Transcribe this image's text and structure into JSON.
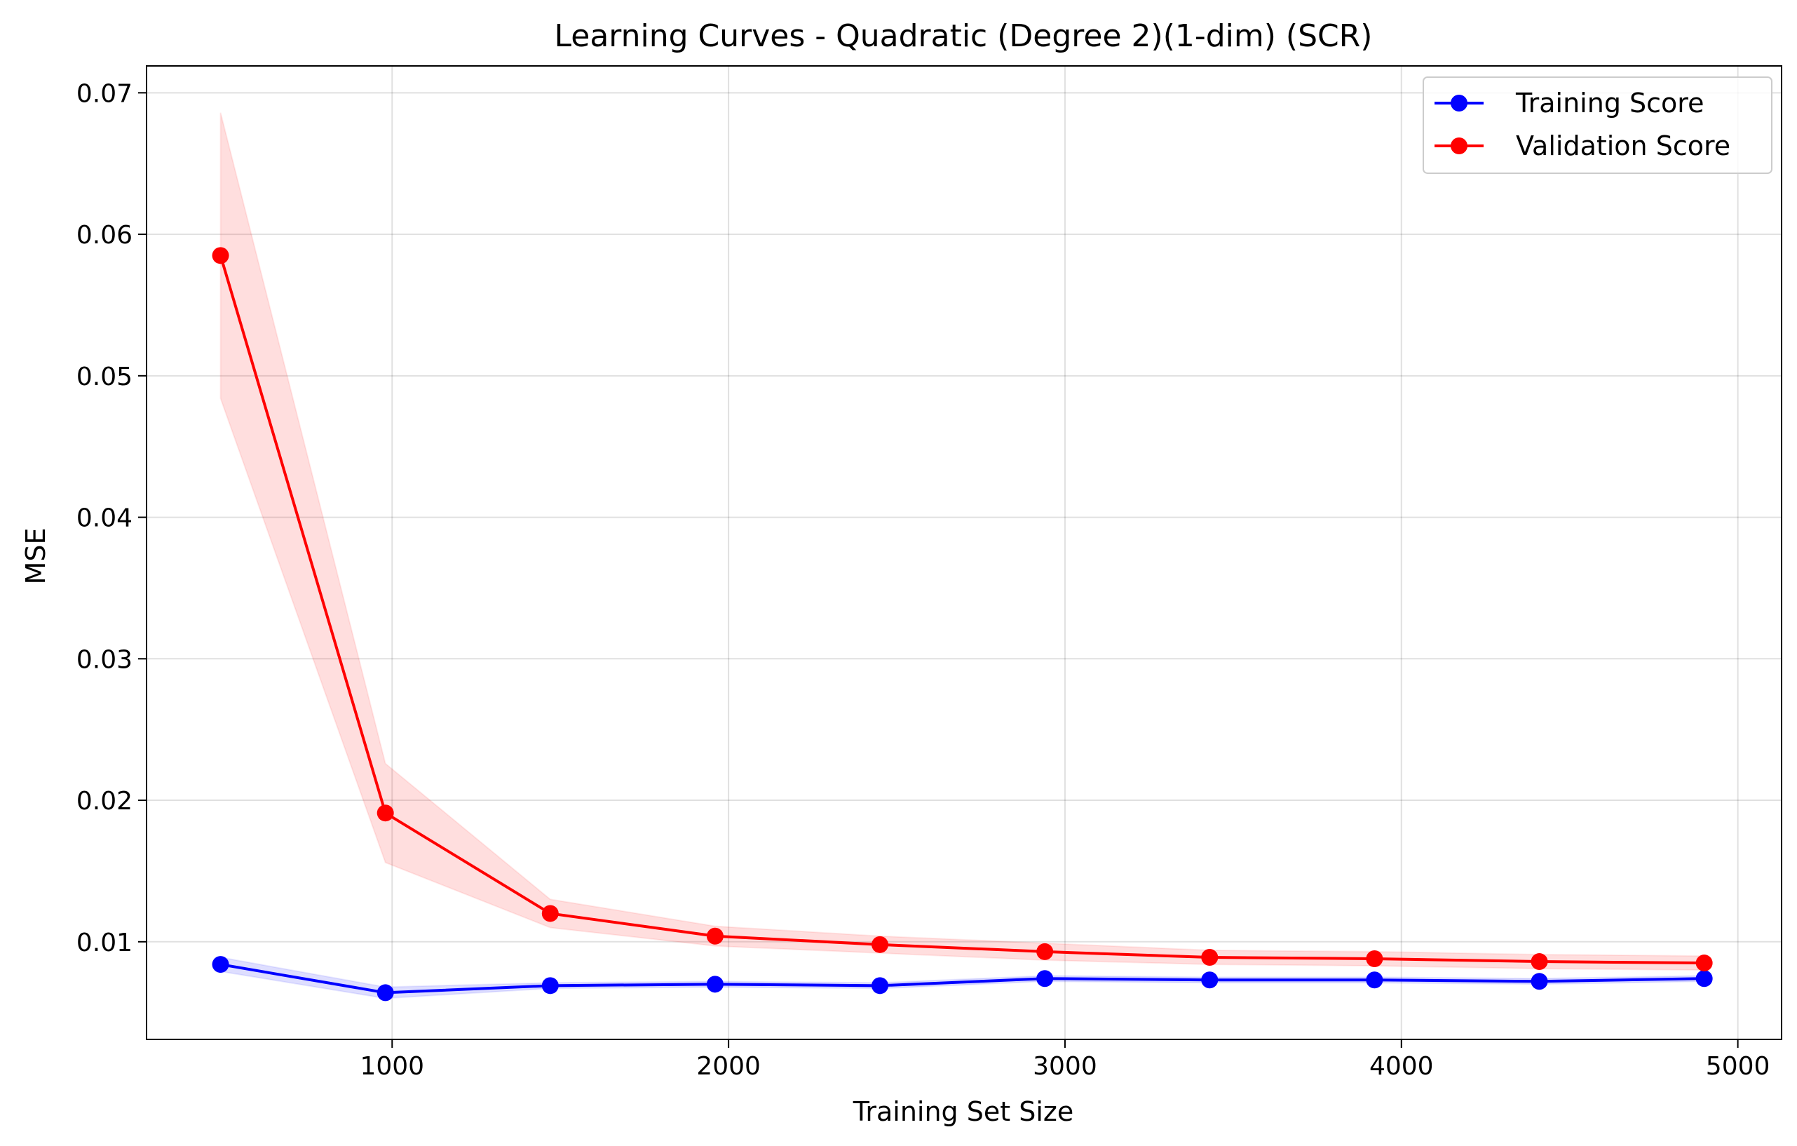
{
  "chart_data": {
    "type": "line",
    "title": "Learning Curves - Quadratic (Degree 2)(1-dim) (SCR)",
    "xlabel": "Training Set Size",
    "ylabel": "MSE",
    "xlim": [
      270,
      5130
    ],
    "ylim": [
      0.0031,
      0.0719
    ],
    "xticks": [
      1000,
      2000,
      3000,
      4000,
      5000
    ],
    "xtick_labels": [
      "1000",
      "2000",
      "3000",
      "4000",
      "5000"
    ],
    "yticks": [
      0.01,
      0.02,
      0.03,
      0.04,
      0.05,
      0.06,
      0.07
    ],
    "ytick_labels": [
      "0.01",
      "0.02",
      "0.03",
      "0.04",
      "0.05",
      "0.06",
      "0.07"
    ],
    "grid": true,
    "legend_position": "top-right",
    "x": [
      490,
      980,
      1470,
      1960,
      2450,
      2940,
      3430,
      3920,
      4410,
      4900
    ],
    "series": [
      {
        "name": "Training Score",
        "color": "#0000ff",
        "band_color": "#0000ff",
        "marker": "circle",
        "values": [
          0.0084,
          0.0064,
          0.0069,
          0.007,
          0.0069,
          0.0074,
          0.0073,
          0.0073,
          0.0072,
          0.0074
        ],
        "band_lower": [
          0.0079,
          0.006,
          0.0067,
          0.0068,
          0.0067,
          0.0072,
          0.0071,
          0.0071,
          0.007,
          0.0072
        ],
        "band_upper": [
          0.0089,
          0.0068,
          0.0071,
          0.0072,
          0.0071,
          0.0076,
          0.0075,
          0.0075,
          0.0074,
          0.0076
        ]
      },
      {
        "name": "Validation Score",
        "color": "#ff0000",
        "band_color": "#ff0000",
        "marker": "circle",
        "values": [
          0.0585,
          0.0191,
          0.012,
          0.0104,
          0.0098,
          0.0093,
          0.0089,
          0.0088,
          0.0086,
          0.0085
        ],
        "band_lower": [
          0.0484,
          0.0156,
          0.011,
          0.0097,
          0.0092,
          0.0087,
          0.0084,
          0.0083,
          0.0081,
          0.008
        ],
        "band_upper": [
          0.0686,
          0.0226,
          0.013,
          0.0111,
          0.0104,
          0.0099,
          0.0094,
          0.0093,
          0.0091,
          0.009
        ]
      }
    ]
  }
}
